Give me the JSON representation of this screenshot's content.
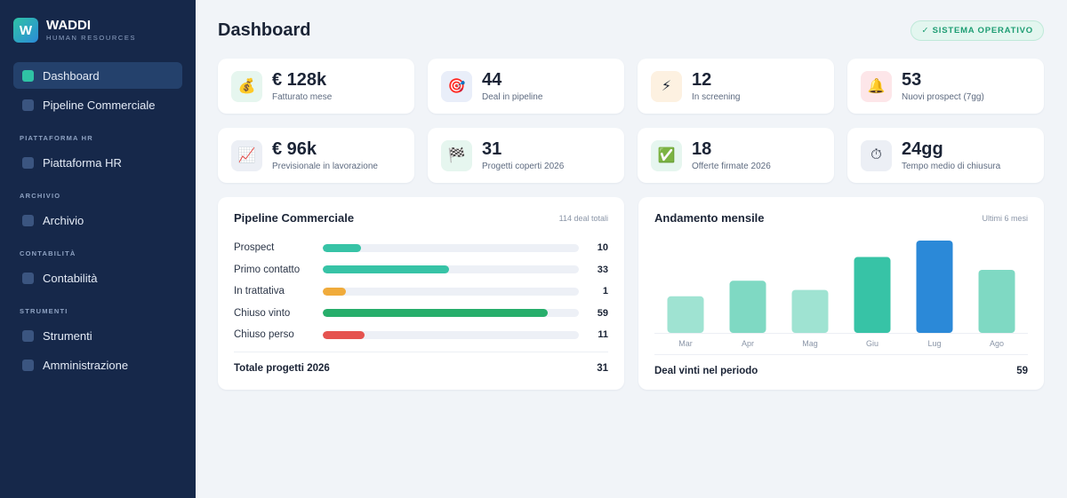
{
  "brand": {
    "logo_letter": "W",
    "name": "WADDI",
    "subtitle": "HUMAN RESOURCES"
  },
  "sidebar": {
    "top_items": [
      {
        "label": "Dashboard",
        "active": true
      },
      {
        "label": "Pipeline Commerciale",
        "active": false
      }
    ],
    "sections": [
      {
        "title": "PIATTAFORMA HR",
        "items": [
          {
            "label": "Piattaforma HR"
          }
        ]
      },
      {
        "title": "ARCHIVIO",
        "items": [
          {
            "label": "Archivio"
          }
        ]
      },
      {
        "title": "CONTABILITÀ",
        "items": [
          {
            "label": "Contabilità"
          }
        ]
      },
      {
        "title": "STRUMENTI",
        "items": [
          {
            "label": "Strumenti"
          },
          {
            "label": "Amministrazione"
          }
        ]
      }
    ]
  },
  "header": {
    "title": "Dashboard",
    "status": "✓ SISTEMA OPERATIVO"
  },
  "kpis": [
    {
      "value": "€ 128k",
      "label": "Fatturato mese",
      "icon": "money-bag-icon",
      "glyph": "💰",
      "bg": "#e6f6ef"
    },
    {
      "value": "44",
      "label": "Deal in pipeline",
      "icon": "target-icon",
      "glyph": "🎯",
      "bg": "#e9eef9"
    },
    {
      "value": "12",
      "label": "In screening",
      "icon": "lightning-icon",
      "glyph": "⚡",
      "bg": "#fdf1e1"
    },
    {
      "value": "53",
      "label": "Nuovi prospect (7gg)",
      "icon": "bell-icon",
      "glyph": "🔔",
      "bg": "#fde6e9"
    },
    {
      "value": "€ 96k",
      "label": "Previsionale in lavorazione",
      "icon": "chart-increasing-icon",
      "glyph": "📈",
      "bg": "#eceff5"
    },
    {
      "value": "31",
      "label": "Progetti coperti 2026",
      "icon": "checkered-flag-icon",
      "glyph": "🏁",
      "bg": "#e6f6ef"
    },
    {
      "value": "18",
      "label": "Offerte firmate 2026",
      "icon": "check-mark-icon",
      "glyph": "✅",
      "bg": "#e6f6ef"
    },
    {
      "value": "24gg",
      "label": "Tempo medio di chiusura",
      "icon": "stopwatch-icon",
      "glyph": "⏱",
      "bg": "#eceff5"
    }
  ],
  "pipeline": {
    "title": "Pipeline Commerciale",
    "meta": "114 deal totali",
    "rows": [
      {
        "label": "Prospect",
        "count": "10",
        "value": 10,
        "color": "#37c3a6"
      },
      {
        "label": "Primo contatto",
        "count": "33",
        "value": 33,
        "color": "#37c3a6"
      },
      {
        "label": "In trattativa",
        "count": "1",
        "value": 1,
        "color": "#f0ab3b"
      },
      {
        "label": "Chiuso vinto",
        "count": "59",
        "value": 59,
        "color": "#27ae6b"
      },
      {
        "label": "Chiuso perso",
        "count": "11",
        "value": 11,
        "color": "#e5534f"
      }
    ],
    "total_label": "Totale progetti 2026",
    "total_value": "31"
  },
  "monthly": {
    "title": "Andamento mensile",
    "meta": "Ultimi 6 mesi",
    "total_label": "Deal vinti nel periodo",
    "total_value": "59"
  },
  "chart_data": {
    "type": "bar",
    "title": "Andamento mensile",
    "categories": [
      "Mar",
      "Apr",
      "Mag",
      "Giu",
      "Lug",
      "Ago"
    ],
    "values": [
      4,
      5.7,
      4.7,
      8.3,
      10.1,
      6.9
    ],
    "colors": [
      "#9fe3d2",
      "#7fd9c3",
      "#9fe3d2",
      "#37c3a6",
      "#2b89d8",
      "#7fd9c3"
    ],
    "ylim": [
      0,
      10.1
    ],
    "xlabel": "",
    "ylabel": "",
    "grid": false
  }
}
